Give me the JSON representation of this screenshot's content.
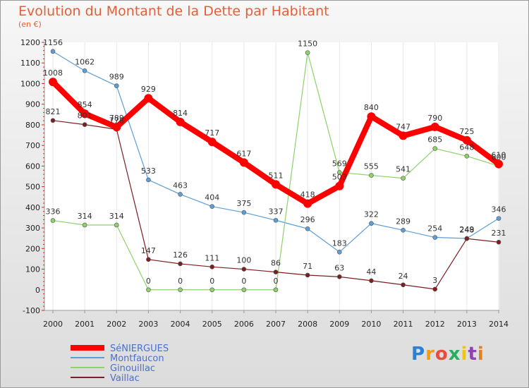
{
  "chart_data": {
    "type": "line",
    "title": "Evolution du Montant de la Dette par Habitant",
    "subtitle": "(en €)",
    "xlabel": "",
    "ylabel": "",
    "x": [
      "2000",
      "2001",
      "2002",
      "2003",
      "2004",
      "2005",
      "2006",
      "2007",
      "2008",
      "2009",
      "2010",
      "2011",
      "2012",
      "2013",
      "2014"
    ],
    "ylim": [
      -100,
      1200
    ],
    "yticks": [
      -100,
      0,
      100,
      200,
      300,
      400,
      500,
      600,
      700,
      800,
      900,
      1000,
      1100,
      1200
    ],
    "grid": "vertical",
    "legend_position": "bottom-left",
    "series": [
      {
        "name": "SéNIERGUES",
        "color": "#ff0000",
        "values": [
          1008,
          854,
          789,
          929,
          814,
          717,
          617,
          511,
          418,
          503,
          840,
          747,
          790,
          725,
          610
        ],
        "labels": [
          "1008",
          "854",
          "789",
          "929",
          "814",
          "717",
          "617",
          "511",
          "418",
          "503",
          "840",
          "747",
          "790",
          "725",
          "610"
        ]
      },
      {
        "name": "Montfaucon",
        "color": "#5e9ed6",
        "values": [
          1156,
          1062,
          989,
          533,
          463,
          404,
          375,
          337,
          296,
          183,
          322,
          289,
          254,
          249,
          346
        ],
        "labels": [
          "1156",
          "1062",
          "989",
          "533",
          "463",
          "404",
          "375",
          "337",
          "296",
          "183",
          "322",
          "289",
          "254",
          "249",
          "346"
        ]
      },
      {
        "name": "Ginouillac",
        "color": "#8fd16a",
        "values": [
          336,
          314,
          314,
          0,
          0,
          0,
          0,
          0,
          1150,
          569,
          555,
          541,
          685,
          648,
          600
        ],
        "labels": [
          "336",
          "314",
          "314",
          "0",
          "0",
          "0",
          "0",
          "0",
          "1150",
          "569",
          "555",
          "541",
          "685",
          "648",
          "600"
        ]
      },
      {
        "name": "Vaillac",
        "color": "#7a1f22",
        "values": [
          821,
          801,
          778,
          147,
          126,
          111,
          100,
          86,
          71,
          63,
          44,
          24,
          3,
          248,
          231
        ],
        "labels": [
          "821",
          "801",
          "778",
          "147",
          "126",
          "111",
          "100",
          "86",
          "71",
          "63",
          "44",
          "24",
          "3",
          "248",
          "231"
        ]
      }
    ]
  },
  "logo": {
    "text": "Proxiti"
  }
}
